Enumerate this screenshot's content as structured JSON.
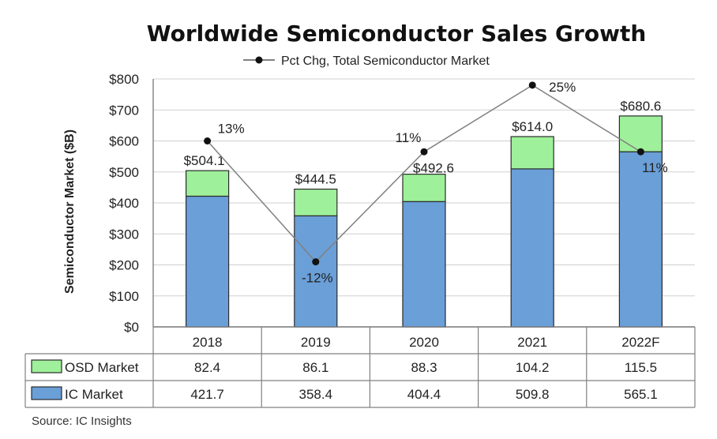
{
  "chart_data": {
    "type": "bar",
    "stacked": true,
    "title": "Worldwide Semiconductor Sales Growth",
    "ylabel": "Semiconductor Market ($B)",
    "ylim": [
      0,
      800
    ],
    "yticks": [
      0,
      100,
      200,
      300,
      400,
      500,
      600,
      700,
      800
    ],
    "ytick_labels": [
      "$0",
      "$100",
      "$200",
      "$300",
      "$400",
      "$500",
      "$600",
      "$700",
      "$800"
    ],
    "categories": [
      "2018",
      "2019",
      "2020",
      "2021",
      "2022F"
    ],
    "series": [
      {
        "name": "IC Market",
        "color": "#6a9fd8",
        "values": [
          421.7,
          358.4,
          404.4,
          509.8,
          565.1
        ],
        "value_labels": [
          "421.7",
          "358.4",
          "404.4",
          "509.8",
          "565.1"
        ]
      },
      {
        "name": "OSD Market",
        "color": "#9ef09a",
        "values": [
          82.4,
          86.1,
          88.3,
          104.2,
          115.5
        ],
        "value_labels": [
          "82.4",
          "86.1",
          "88.3",
          "104.2",
          "115.5"
        ]
      }
    ],
    "totals": [
      "$504.1",
      "$444.5",
      "$492.6",
      "$614.0",
      "$680.6"
    ],
    "line": {
      "name": "Pct Chg, Total Semiconductor Market",
      "labels": [
        "13%",
        "-12%",
        "11%",
        "25%",
        "11%"
      ],
      "plot_values": [
        600,
        210,
        565,
        780,
        565
      ],
      "color": "#808080"
    },
    "grid": true,
    "legend_position": "top",
    "source": "Source: IC Insights"
  }
}
